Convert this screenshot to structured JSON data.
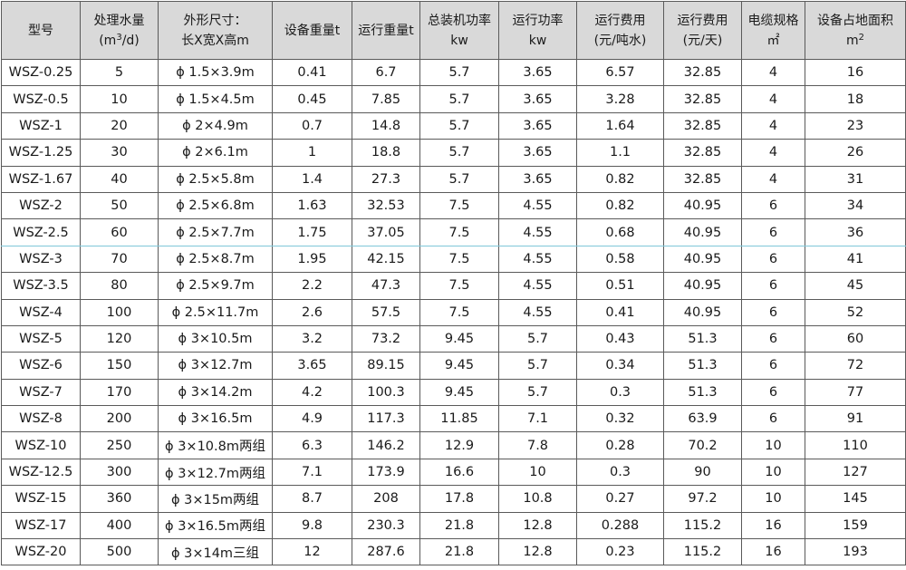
{
  "header": [
    {
      "l1": "型号",
      "l2": ""
    },
    {
      "l1": "处理水量",
      "l2_pre": "(m",
      "l2_sup": "3",
      "l2_post": "/d)"
    },
    {
      "l1": "外形尺寸：",
      "l2": "长X宽X高m"
    },
    {
      "l1": "设备重量t",
      "l2": ""
    },
    {
      "l1": "运行重量t",
      "l2": ""
    },
    {
      "l1": "总装机功率",
      "l2": "kw"
    },
    {
      "l1": "运行功率",
      "l2": "kw"
    },
    {
      "l1": "运行费用",
      "l2": "(元/吨水)"
    },
    {
      "l1": "运行费用",
      "l2": "(元/天)"
    },
    {
      "l1": "电缆规格",
      "l2": "㎡"
    },
    {
      "l1": "设备占地面积",
      "l2_pre": "m",
      "l2_sup": "2",
      "l2_post": ""
    }
  ],
  "rows": [
    [
      "WSZ-0.25",
      "5",
      "ϕ 1.5×3.9m",
      "0.41",
      "6.7",
      "5.7",
      "3.65",
      "6.57",
      "32.85",
      "4",
      "16"
    ],
    [
      "WSZ-0.5",
      "10",
      "ϕ 1.5×4.5m",
      "0.45",
      "7.85",
      "5.7",
      "3.65",
      "3.28",
      "32.85",
      "4",
      "18"
    ],
    [
      "WSZ-1",
      "20",
      "ϕ 2×4.9m",
      "0.7",
      "14.8",
      "5.7",
      "3.65",
      "1.64",
      "32.85",
      "4",
      "23"
    ],
    [
      "WSZ-1.25",
      "30",
      "ϕ 2×6.1m",
      "1",
      "18.8",
      "5.7",
      "3.65",
      "1.1",
      "32.85",
      "4",
      "26"
    ],
    [
      "WSZ-1.67",
      "40",
      "ϕ 2.5×5.8m",
      "1.4",
      "27.3",
      "5.7",
      "3.65",
      "0.82",
      "32.85",
      "4",
      "31"
    ],
    [
      "WSZ-2",
      "50",
      "ϕ 2.5×6.8m",
      "1.63",
      "32.53",
      "7.5",
      "4.55",
      "0.82",
      "40.95",
      "6",
      "34"
    ],
    [
      "WSZ-2.5",
      "60",
      "ϕ 2.5×7.7m",
      "1.75",
      "37.05",
      "7.5",
      "4.55",
      "0.68",
      "40.95",
      "6",
      "36"
    ],
    [
      "WSZ-3",
      "70",
      "ϕ 2.5×8.7m",
      "1.95",
      "42.15",
      "7.5",
      "4.55",
      "0.58",
      "40.95",
      "6",
      "41"
    ],
    [
      "WSZ-3.5",
      "80",
      "ϕ 2.5×9.7m",
      "2.2",
      "47.3",
      "7.5",
      "4.55",
      "0.51",
      "40.95",
      "6",
      "45"
    ],
    [
      "WSZ-4",
      "100",
      "ϕ 2.5×11.7m",
      "2.6",
      "57.5",
      "7.5",
      "4.55",
      "0.41",
      "40.95",
      "6",
      "52"
    ],
    [
      "WSZ-5",
      "120",
      "ϕ 3×10.5m",
      "3.2",
      "73.2",
      "9.45",
      "5.7",
      "0.43",
      "51.3",
      "6",
      "60"
    ],
    [
      "WSZ-6",
      "150",
      "ϕ 3×12.7m",
      "3.65",
      "89.15",
      "9.45",
      "5.7",
      "0.34",
      "51.3",
      "6",
      "72"
    ],
    [
      "WSZ-7",
      "170",
      "ϕ 3×14.2m",
      "4.2",
      "100.3",
      "9.45",
      "5.7",
      "0.3",
      "51.3",
      "6",
      "77"
    ],
    [
      "WSZ-8",
      "200",
      "ϕ 3×16.5m",
      "4.9",
      "117.3",
      "11.85",
      "7.1",
      "0.32",
      "63.9",
      "6",
      "91"
    ],
    [
      "WSZ-10",
      "250",
      "ϕ 3×10.8m两组",
      "6.3",
      "146.2",
      "12.9",
      "7.8",
      "0.28",
      "70.2",
      "10",
      "110"
    ],
    [
      "WSZ-12.5",
      "300",
      "ϕ 3×12.7m两组",
      "7.1",
      "173.9",
      "16.6",
      "10",
      "0.3",
      "90",
      "10",
      "127"
    ],
    [
      "WSZ-15",
      "360",
      "ϕ 3×15m两组",
      "8.7",
      "208",
      "17.8",
      "10.8",
      "0.27",
      "97.2",
      "10",
      "145"
    ],
    [
      "WSZ-17",
      "400",
      "ϕ 3×16.5m两组",
      "9.8",
      "230.3",
      "21.8",
      "12.8",
      "0.288",
      "115.2",
      "16",
      "159"
    ],
    [
      "WSZ-20",
      "500",
      "ϕ 3×14m三组",
      "12",
      "287.6",
      "21.8",
      "12.8",
      "0.23",
      "115.2",
      "16",
      "193"
    ]
  ],
  "colors": {
    "header_bg": "#d9d9d9",
    "border": "#5a5a5a",
    "text": "#1a1a1a"
  }
}
